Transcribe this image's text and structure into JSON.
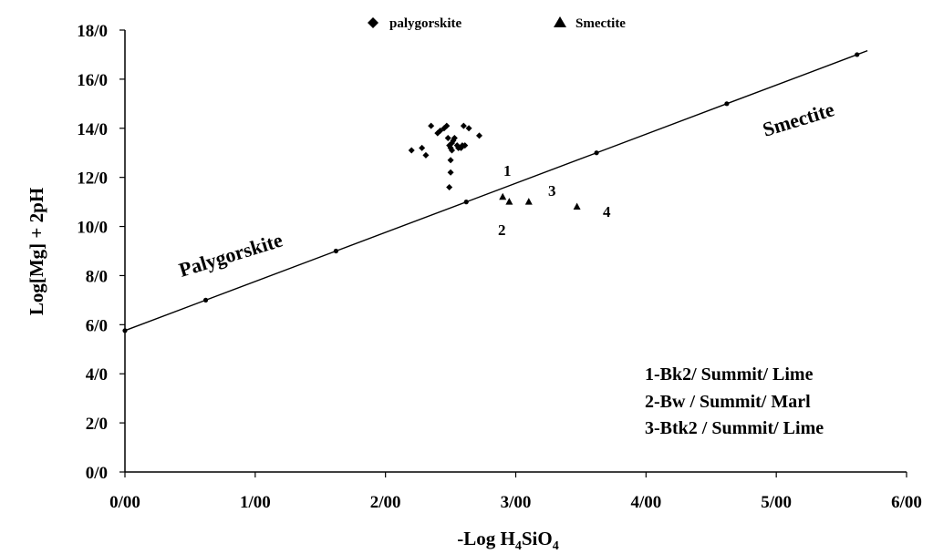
{
  "chart_data": {
    "type": "scatter",
    "xlabel": "-Log H4SiO4",
    "xlabel_main": "-Log H",
    "xlabel_sub1": "4",
    "xlabel_mid": "SiO",
    "xlabel_sub2": "4",
    "ylabel": "Log[Mg] + 2pH",
    "xlim": [
      0,
      6
    ],
    "ylim": [
      0,
      18
    ],
    "x_ticks": [
      0,
      1,
      2,
      3,
      4,
      5,
      6
    ],
    "x_tick_labels": [
      "0/00",
      "1/00",
      "2/00",
      "3/00",
      "4/00",
      "5/00",
      "6/00"
    ],
    "y_ticks": [
      0,
      2,
      4,
      6,
      8,
      10,
      12,
      14,
      16,
      18
    ],
    "y_tick_labels": [
      "0/0",
      "2/0",
      "4/0",
      "6/0",
      "8/0",
      "10/0",
      "12/0",
      "14/0",
      "16/0",
      "18/0"
    ],
    "grid": false,
    "legend_placement": "top-center",
    "legend": [
      {
        "name": "palygorskite",
        "marker": "diamond"
      },
      {
        "name": "Smectite",
        "marker": "triangle"
      }
    ],
    "boundary_line": {
      "x": [
        0,
        0.62,
        1.62,
        2.62,
        3.62,
        4.62,
        5.62,
        5.7
      ],
      "y": [
        5.76,
        7.0,
        9.0,
        11.0,
        13.0,
        15.0,
        17.0,
        17.16
      ]
    },
    "series": [
      {
        "name": "palygorskite",
        "marker": "diamond",
        "x": [
          2.2,
          2.28,
          2.31,
          2.35,
          2.4,
          2.42,
          2.45,
          2.47,
          2.48,
          2.49,
          2.5,
          2.5,
          2.5,
          2.51,
          2.51,
          2.52,
          2.53,
          2.55,
          2.56,
          2.58,
          2.59,
          2.6,
          2.61,
          2.64,
          2.72,
          2.49
        ],
        "y": [
          13.1,
          13.2,
          12.9,
          14.1,
          13.8,
          13.9,
          14.0,
          14.1,
          13.6,
          13.3,
          13.2,
          12.7,
          12.2,
          13.4,
          13.1,
          13.5,
          13.6,
          13.3,
          13.2,
          13.2,
          13.3,
          14.1,
          13.3,
          14.0,
          13.7,
          11.6
        ]
      },
      {
        "name": "Smectite",
        "marker": "triangle",
        "x": [
          2.9,
          2.95,
          3.1,
          3.47
        ],
        "y": [
          11.2,
          11.0,
          11.0,
          10.8
        ]
      }
    ],
    "region_labels": [
      "Palygorskite",
      "Smectite"
    ],
    "point_labels": [
      "1",
      "2",
      "3",
      "4"
    ],
    "annotations": [
      "1-Bk2/ Summit/ Lime",
      "2-Bw / Summit/ Marl",
      "3-Btk2 / Summit/ Lime"
    ]
  }
}
